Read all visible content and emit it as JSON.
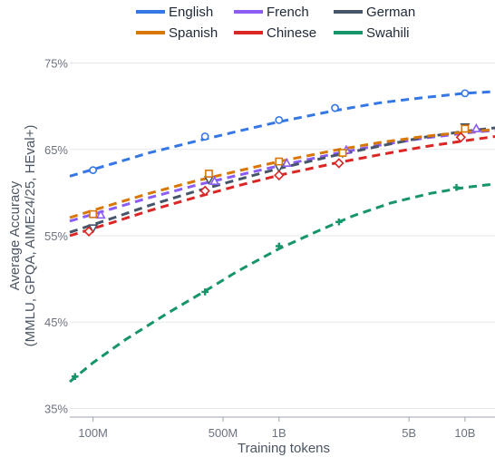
{
  "chart_data": {
    "type": "line",
    "title": "",
    "xlabel": "Training tokens",
    "ylabel_line1": "Average Accuracy",
    "ylabel_line2": "(MMLU, GPQA, AIME24/25, HEval+)",
    "x_scale": "log",
    "x_ticks": [
      {
        "value": 100000000,
        "label": "100M"
      },
      {
        "value": 500000000,
        "label": "500M"
      },
      {
        "value": 1000000000,
        "label": "1B"
      },
      {
        "value": 5000000000,
        "label": "5B"
      },
      {
        "value": 10000000000,
        "label": "10B"
      }
    ],
    "xlim": [
      75000000,
      14500000000
    ],
    "y_ticks": [
      {
        "value": 35,
        "label": "35%"
      },
      {
        "value": 45,
        "label": "45%"
      },
      {
        "value": 55,
        "label": "55%"
      },
      {
        "value": 65,
        "label": "65%"
      },
      {
        "value": 75,
        "label": "75%"
      }
    ],
    "ylim": [
      34,
      76
    ],
    "grid": true,
    "legend_position": "top-center",
    "series": [
      {
        "name": "English",
        "color": "#3578e5",
        "marker": "circle",
        "points": [
          {
            "x": 100000000,
            "y": 62.6
          },
          {
            "x": 400000000,
            "y": 66.5
          },
          {
            "x": 1000000000,
            "y": 68.4
          },
          {
            "x": 2000000000,
            "y": 69.8
          },
          {
            "x": 10000000000,
            "y": 71.5
          }
        ],
        "fit": [
          {
            "x": 75000000,
            "y": 61.9
          },
          {
            "x": 130000000,
            "y": 63.4
          },
          {
            "x": 200000000,
            "y": 64.6
          },
          {
            "x": 350000000,
            "y": 65.9
          },
          {
            "x": 600000000,
            "y": 67.1
          },
          {
            "x": 1000000000,
            "y": 68.2
          },
          {
            "x": 2000000000,
            "y": 69.5
          },
          {
            "x": 3500000000,
            "y": 70.4
          },
          {
            "x": 6000000000,
            "y": 71.0
          },
          {
            "x": 10000000000,
            "y": 71.5
          },
          {
            "x": 14500000000,
            "y": 71.7
          }
        ]
      },
      {
        "name": "French",
        "color": "#8b5cf6",
        "marker": "triangle-up",
        "points": [
          {
            "x": 110000000,
            "y": 57.4
          },
          {
            "x": 450000000,
            "y": 61.3
          },
          {
            "x": 1100000000,
            "y": 63.4
          },
          {
            "x": 2300000000,
            "y": 64.9
          },
          {
            "x": 11500000000,
            "y": 67.4
          }
        ],
        "fit": [
          {
            "x": 75000000,
            "y": 56.7
          },
          {
            "x": 130000000,
            "y": 58.2
          },
          {
            "x": 200000000,
            "y": 59.4
          },
          {
            "x": 350000000,
            "y": 60.8
          },
          {
            "x": 600000000,
            "y": 62.0
          },
          {
            "x": 1000000000,
            "y": 63.1
          },
          {
            "x": 2000000000,
            "y": 64.5
          },
          {
            "x": 3500000000,
            "y": 65.5
          },
          {
            "x": 6000000000,
            "y": 66.3
          },
          {
            "x": 10000000000,
            "y": 66.9
          },
          {
            "x": 14500000000,
            "y": 67.2
          }
        ]
      },
      {
        "name": "German",
        "color": "#475569",
        "marker": "triangle-down",
        "points": [
          {
            "x": 100000000,
            "y": 55.9
          },
          {
            "x": 420000000,
            "y": 61.5
          },
          {
            "x": 1000000000,
            "y": 62.9
          },
          {
            "x": 2200000000,
            "y": 64.6
          },
          {
            "x": 10000000000,
            "y": 67.6
          }
        ],
        "fit": [
          {
            "x": 75000000,
            "y": 55.4
          },
          {
            "x": 130000000,
            "y": 57.1
          },
          {
            "x": 200000000,
            "y": 58.5
          },
          {
            "x": 350000000,
            "y": 60.1
          },
          {
            "x": 600000000,
            "y": 61.5
          },
          {
            "x": 1000000000,
            "y": 62.8
          },
          {
            "x": 2000000000,
            "y": 64.3
          },
          {
            "x": 3500000000,
            "y": 65.4
          },
          {
            "x": 6000000000,
            "y": 66.4
          },
          {
            "x": 10000000000,
            "y": 67.1
          },
          {
            "x": 14500000000,
            "y": 67.5
          }
        ]
      },
      {
        "name": "Spanish",
        "color": "#d97706",
        "marker": "square",
        "points": [
          {
            "x": 100000000,
            "y": 57.5
          },
          {
            "x": 420000000,
            "y": 62.2
          },
          {
            "x": 1000000000,
            "y": 63.6
          },
          {
            "x": 2200000000,
            "y": 64.6
          },
          {
            "x": 10000000000,
            "y": 67.4
          }
        ],
        "fit": [
          {
            "x": 75000000,
            "y": 57.1
          },
          {
            "x": 130000000,
            "y": 58.7
          },
          {
            "x": 200000000,
            "y": 59.9
          },
          {
            "x": 350000000,
            "y": 61.3
          },
          {
            "x": 600000000,
            "y": 62.5
          },
          {
            "x": 1000000000,
            "y": 63.6
          },
          {
            "x": 2000000000,
            "y": 64.9
          },
          {
            "x": 3500000000,
            "y": 65.8
          },
          {
            "x": 6000000000,
            "y": 66.5
          },
          {
            "x": 10000000000,
            "y": 67.0
          },
          {
            "x": 14500000000,
            "y": 67.3
          }
        ]
      },
      {
        "name": "Chinese",
        "color": "#dc2626",
        "marker": "diamond",
        "points": [
          {
            "x": 95000000,
            "y": 55.5
          },
          {
            "x": 400000000,
            "y": 60.2
          },
          {
            "x": 1000000000,
            "y": 62.0
          },
          {
            "x": 2100000000,
            "y": 63.4
          },
          {
            "x": 9500000000,
            "y": 66.4
          }
        ],
        "fit": [
          {
            "x": 75000000,
            "y": 55.0
          },
          {
            "x": 130000000,
            "y": 56.6
          },
          {
            "x": 200000000,
            "y": 57.9
          },
          {
            "x": 350000000,
            "y": 59.4
          },
          {
            "x": 600000000,
            "y": 60.8
          },
          {
            "x": 1000000000,
            "y": 62.0
          },
          {
            "x": 2000000000,
            "y": 63.4
          },
          {
            "x": 3500000000,
            "y": 64.4
          },
          {
            "x": 6000000000,
            "y": 65.3
          },
          {
            "x": 10000000000,
            "y": 66.0
          },
          {
            "x": 14500000000,
            "y": 66.5
          }
        ]
      },
      {
        "name": "Swahili",
        "color": "#16946b",
        "marker": "plus",
        "points": [
          {
            "x": 80000000,
            "y": 38.7
          },
          {
            "x": 400000000,
            "y": 48.5
          },
          {
            "x": 1000000000,
            "y": 53.8
          },
          {
            "x": 2100000000,
            "y": 56.6
          },
          {
            "x": 9000000000,
            "y": 60.6
          }
        ],
        "fit": [
          {
            "x": 75000000,
            "y": 38.1
          },
          {
            "x": 100000000,
            "y": 40.3
          },
          {
            "x": 150000000,
            "y": 43.0
          },
          {
            "x": 250000000,
            "y": 46.0
          },
          {
            "x": 400000000,
            "y": 48.6
          },
          {
            "x": 600000000,
            "y": 50.9
          },
          {
            "x": 1000000000,
            "y": 53.5
          },
          {
            "x": 1600000000,
            "y": 55.5
          },
          {
            "x": 2500000000,
            "y": 57.3
          },
          {
            "x": 4000000000,
            "y": 58.8
          },
          {
            "x": 6500000000,
            "y": 59.9
          },
          {
            "x": 10000000000,
            "y": 60.6
          },
          {
            "x": 14500000000,
            "y": 61.0
          }
        ]
      }
    ]
  }
}
